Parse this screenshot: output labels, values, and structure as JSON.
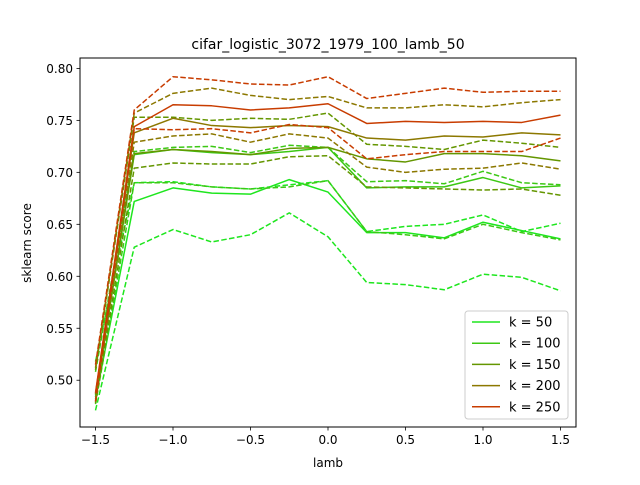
{
  "chart_data": {
    "type": "line",
    "title": "cifar_logistic_3072_1979_100_lamb_50",
    "xlabel": "lamb",
    "ylabel": "sklearn score",
    "xlim": [
      -1.6,
      1.6
    ],
    "ylim": [
      0.455,
      0.81
    ],
    "x": [
      -1.5,
      -1.25,
      -1.0,
      -0.75,
      -0.5,
      -0.25,
      0.0,
      0.25,
      0.5,
      0.75,
      1.0,
      1.25,
      1.5
    ],
    "x_ticks": [
      -1.5,
      -1.0,
      -0.5,
      0.0,
      0.5,
      1.0,
      1.5
    ],
    "x_tick_labels": [
      "−1.5",
      "−1.0",
      "−0.5",
      "0.0",
      "0.5",
      "1.0",
      "1.5"
    ],
    "y_ticks": [
      0.5,
      0.55,
      0.6,
      0.65,
      0.7,
      0.75,
      0.8
    ],
    "y_tick_labels": [
      "0.50",
      "0.55",
      "0.60",
      "0.65",
      "0.70",
      "0.75",
      "0.80"
    ],
    "grid": false,
    "legend_position": "lower-right",
    "series": [
      {
        "name": "k = 50",
        "color": "#1ee61e",
        "values": [
          0.482,
          0.672,
          0.685,
          0.68,
          0.679,
          0.693,
          0.681,
          0.642,
          0.642,
          0.637,
          0.652,
          0.644,
          0.636
        ],
        "upper": [
          0.518,
          0.69,
          0.691,
          0.686,
          0.684,
          0.688,
          0.692,
          0.643,
          0.648,
          0.65,
          0.659,
          0.643,
          0.651
        ],
        "lower": [
          0.471,
          0.628,
          0.645,
          0.633,
          0.64,
          0.661,
          0.638,
          0.594,
          0.592,
          0.587,
          0.602,
          0.599,
          0.586
        ]
      },
      {
        "name": "k = 100",
        "color": "#3cc814",
        "values": [
          0.484,
          0.717,
          0.722,
          0.719,
          0.717,
          0.72,
          0.724,
          0.685,
          0.686,
          0.686,
          0.695,
          0.685,
          0.687
        ],
        "upper": [
          0.508,
          0.72,
          0.724,
          0.725,
          0.719,
          0.726,
          0.724,
          0.691,
          0.692,
          0.689,
          0.701,
          0.69,
          0.688
        ],
        "lower": [
          0.477,
          0.69,
          0.69,
          0.686,
          0.684,
          0.686,
          0.692,
          0.643,
          0.64,
          0.636,
          0.65,
          0.642,
          0.635
        ]
      },
      {
        "name": "k = 150",
        "color": "#649600",
        "values": [
          0.486,
          0.718,
          0.722,
          0.72,
          0.717,
          0.723,
          0.724,
          0.713,
          0.71,
          0.718,
          0.718,
          0.716,
          0.711
        ],
        "upper": [
          0.51,
          0.753,
          0.753,
          0.75,
          0.752,
          0.751,
          0.757,
          0.727,
          0.725,
          0.722,
          0.731,
          0.728,
          0.724
        ],
        "lower": [
          0.478,
          0.704,
          0.709,
          0.708,
          0.708,
          0.715,
          0.716,
          0.686,
          0.685,
          0.684,
          0.683,
          0.684,
          0.678
        ]
      },
      {
        "name": "k = 200",
        "color": "#8c7800",
        "values": [
          0.487,
          0.738,
          0.752,
          0.745,
          0.743,
          0.745,
          0.744,
          0.733,
          0.731,
          0.735,
          0.734,
          0.738,
          0.736
        ],
        "upper": [
          0.512,
          0.757,
          0.776,
          0.781,
          0.774,
          0.77,
          0.773,
          0.762,
          0.762,
          0.765,
          0.763,
          0.767,
          0.77
        ],
        "lower": [
          0.479,
          0.729,
          0.735,
          0.737,
          0.729,
          0.737,
          0.733,
          0.705,
          0.7,
          0.703,
          0.704,
          0.709,
          0.703
        ]
      },
      {
        "name": "k = 250",
        "color": "#c83c00",
        "values": [
          0.488,
          0.744,
          0.765,
          0.764,
          0.76,
          0.762,
          0.766,
          0.747,
          0.749,
          0.748,
          0.749,
          0.748,
          0.755
        ],
        "upper": [
          0.515,
          0.76,
          0.792,
          0.789,
          0.785,
          0.784,
          0.792,
          0.771,
          0.776,
          0.781,
          0.777,
          0.778,
          0.778
        ],
        "lower": [
          0.48,
          0.742,
          0.741,
          0.742,
          0.738,
          0.746,
          0.743,
          0.713,
          0.717,
          0.72,
          0.72,
          0.72,
          0.733
        ]
      }
    ]
  }
}
